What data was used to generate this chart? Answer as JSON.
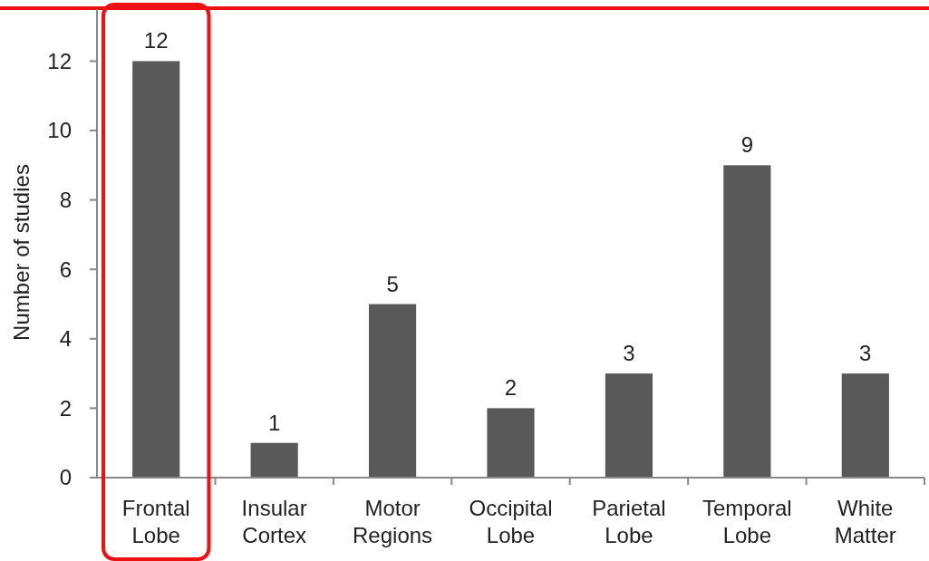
{
  "chart_data": {
    "type": "bar",
    "ylabel": "Number of studies",
    "categories": [
      "Frontal Lobe",
      "Insular Cortex",
      "Motor Regions",
      "Occipital Lobe",
      "Parietal Lobe",
      "Temporal Lobe",
      "White Matter"
    ],
    "values": [
      12,
      1,
      5,
      2,
      3,
      9,
      3
    ],
    "color": "#595959",
    "ylim": [
      0,
      13.5
    ],
    "yticks": [
      0,
      2,
      4,
      6,
      8,
      10,
      12
    ],
    "grid": false,
    "data_labels": true
  }
}
